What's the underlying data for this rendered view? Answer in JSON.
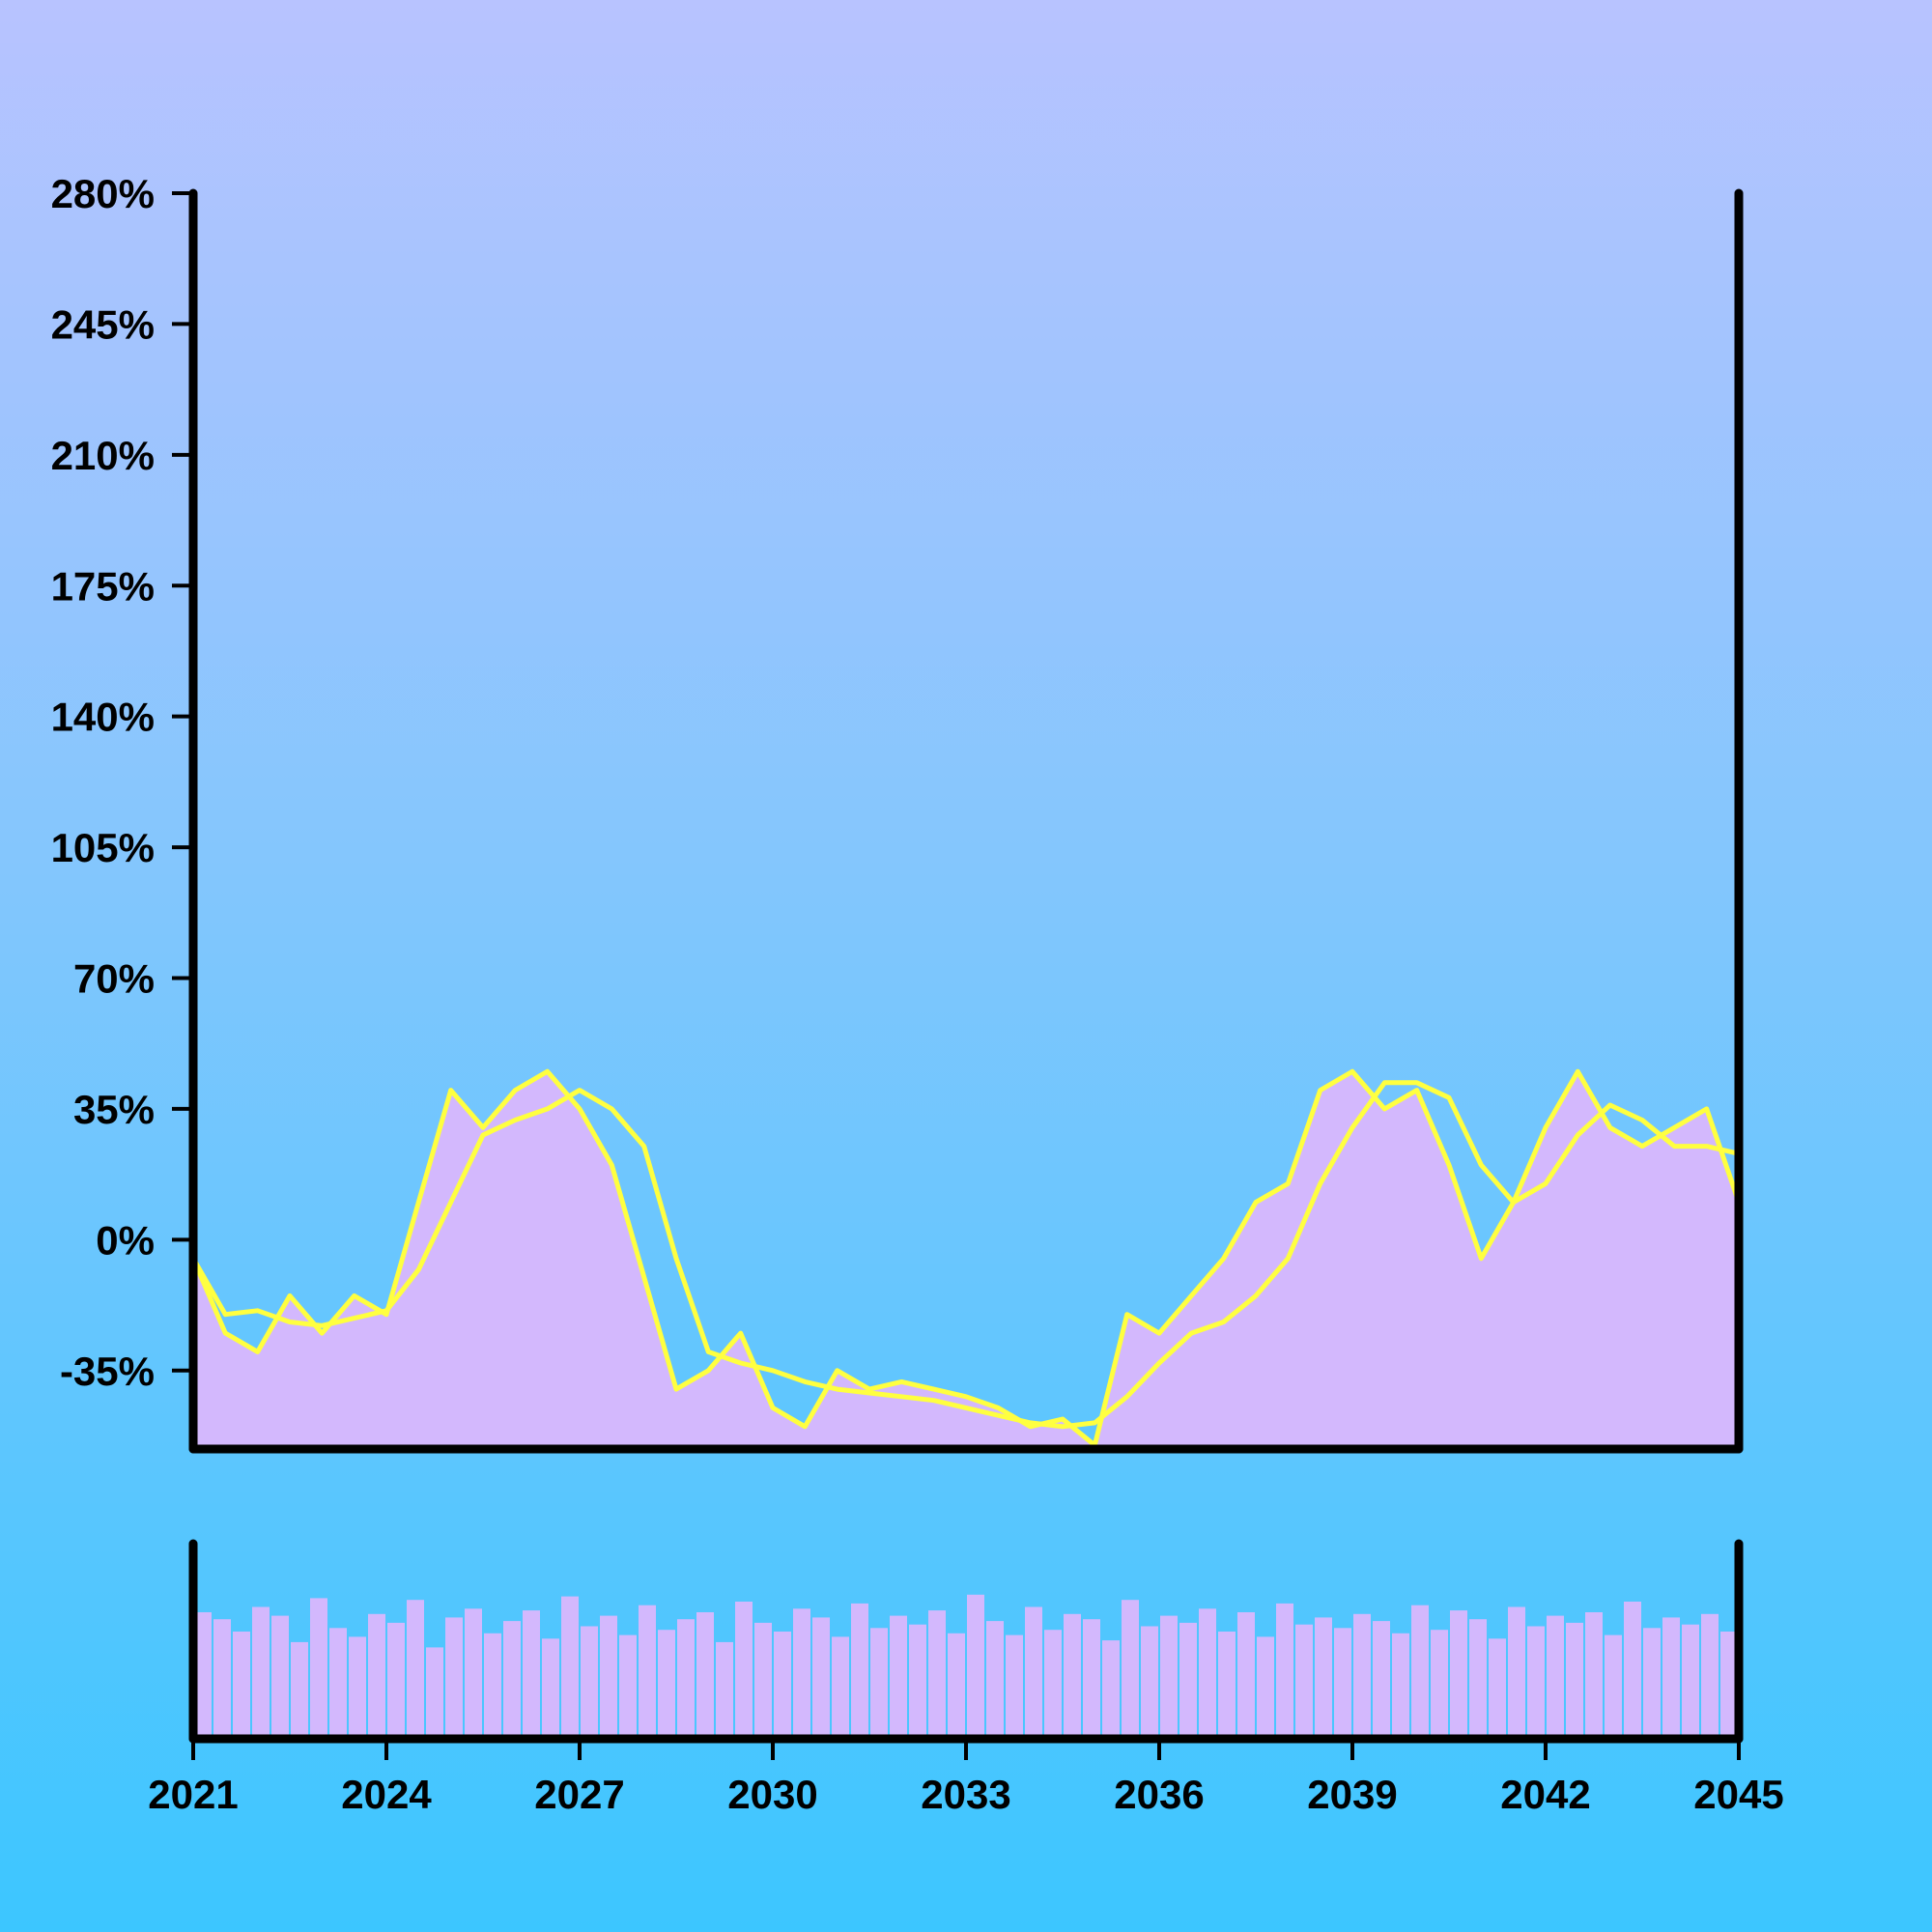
{
  "chart_data": {
    "type": "area",
    "title": "",
    "xlabel": "",
    "ylabel": "",
    "xlim": [
      2021,
      2045
    ],
    "ylim": [
      -56,
      280
    ],
    "y_ticks": [
      -35,
      0,
      35,
      70,
      105,
      140,
      175,
      210,
      245,
      280
    ],
    "y_tick_labels": [
      "-35%",
      "0%",
      "35%",
      "70%",
      "105%",
      "140%",
      "175%",
      "210%",
      "245%",
      "280%"
    ],
    "x_ticks": [
      2021,
      2024,
      2027,
      2030,
      2033,
      2036,
      2039,
      2042,
      2045
    ],
    "x_tick_labels": [
      "2021",
      "2024",
      "2027",
      "2030",
      "2033",
      "2036",
      "2039",
      "2042",
      "2045"
    ],
    "grid": false,
    "legend": "none",
    "colors": {
      "area": "#d3b8fd",
      "line": "#ffff40",
      "axis": "#000000"
    },
    "series": [
      {
        "kind": "area",
        "x": [
          2021.0,
          2021.5,
          2022.0,
          2022.5,
          2023.0,
          2023.5,
          2024.0,
          2024.5,
          2025.0,
          2025.5,
          2026.0,
          2026.5,
          2027.0,
          2027.5,
          2028.0,
          2028.5,
          2029.0,
          2029.5,
          2030.0,
          2030.5,
          2031.0,
          2031.5,
          2032.0,
          2032.5,
          2033.0,
          2033.5,
          2034.0,
          2034.5,
          2035.0,
          2035.5,
          2036.0,
          2036.5,
          2037.0,
          2037.5,
          2038.0,
          2038.5,
          2039.0,
          2039.5,
          2040.0,
          2040.5,
          2041.0,
          2041.5,
          2042.0,
          2042.5,
          2043.0,
          2043.5,
          2044.0,
          2044.5,
          2045.0
        ],
        "values": [
          -5,
          -25,
          -30,
          -15,
          -25,
          -15,
          -20,
          10,
          40,
          30,
          40,
          45,
          35,
          20,
          -10,
          -40,
          -35,
          -25,
          -45,
          -50,
          -35,
          -40,
          -38,
          -40,
          -42,
          -45,
          -50,
          -48,
          -55,
          -20,
          -25,
          -15,
          -5,
          10,
          15,
          40,
          45,
          35,
          40,
          20,
          -5,
          10,
          30,
          45,
          30,
          25,
          30,
          35,
          10
        ]
      },
      {
        "kind": "line",
        "x": [
          2021.0,
          2021.5,
          2022.0,
          2022.5,
          2023.0,
          2023.5,
          2024.0,
          2024.5,
          2025.0,
          2025.5,
          2026.0,
          2026.5,
          2027.0,
          2027.5,
          2028.0,
          2028.5,
          2029.0,
          2029.5,
          2030.0,
          2030.5,
          2031.0,
          2031.5,
          2032.0,
          2032.5,
          2033.0,
          2033.5,
          2034.0,
          2034.5,
          2035.0,
          2035.5,
          2036.0,
          2036.5,
          2037.0,
          2037.5,
          2038.0,
          2038.5,
          2039.0,
          2039.5,
          2040.0,
          2040.5,
          2041.0,
          2041.5,
          2042.0,
          2042.5,
          2043.0,
          2043.5,
          2044.0,
          2044.5,
          2045.0
        ],
        "values": [
          -5,
          -20,
          -19,
          -22,
          -23,
          -21,
          -19,
          -8,
          10,
          28,
          32,
          35,
          40,
          35,
          25,
          -5,
          -30,
          -33,
          -35,
          -38,
          -40,
          -41,
          -42,
          -43,
          -45,
          -47,
          -49,
          -50,
          -49,
          -42,
          -33,
          -25,
          -22,
          -15,
          -5,
          15,
          30,
          42,
          42,
          38,
          20,
          10,
          15,
          28,
          36,
          32,
          25,
          25,
          23
        ]
      }
    ]
  },
  "volume_data": {
    "type": "bar",
    "x_start": 2021,
    "x_end": 2045,
    "values": [
      0.72,
      0.68,
      0.61,
      0.75,
      0.7,
      0.55,
      0.8,
      0.63,
      0.58,
      0.71,
      0.66,
      0.79,
      0.52,
      0.69,
      0.74,
      0.6,
      0.67,
      0.73,
      0.57,
      0.81,
      0.64,
      0.7,
      0.59,
      0.76,
      0.62,
      0.68,
      0.72,
      0.55,
      0.78,
      0.66,
      0.61,
      0.74,
      0.69,
      0.58,
      0.77,
      0.63,
      0.7,
      0.65,
      0.73,
      0.6,
      0.82,
      0.67,
      0.59,
      0.75,
      0.62,
      0.71,
      0.68,
      0.56,
      0.79,
      0.64,
      0.7,
      0.66,
      0.74,
      0.61,
      0.72,
      0.58,
      0.77,
      0.65,
      0.69,
      0.63,
      0.71,
      0.67,
      0.6,
      0.76,
      0.62,
      0.73,
      0.68,
      0.57,
      0.75,
      0.64,
      0.7,
      0.66,
      0.72,
      0.59,
      0.78,
      0.63,
      0.69,
      0.65,
      0.71,
      0.61
    ]
  }
}
